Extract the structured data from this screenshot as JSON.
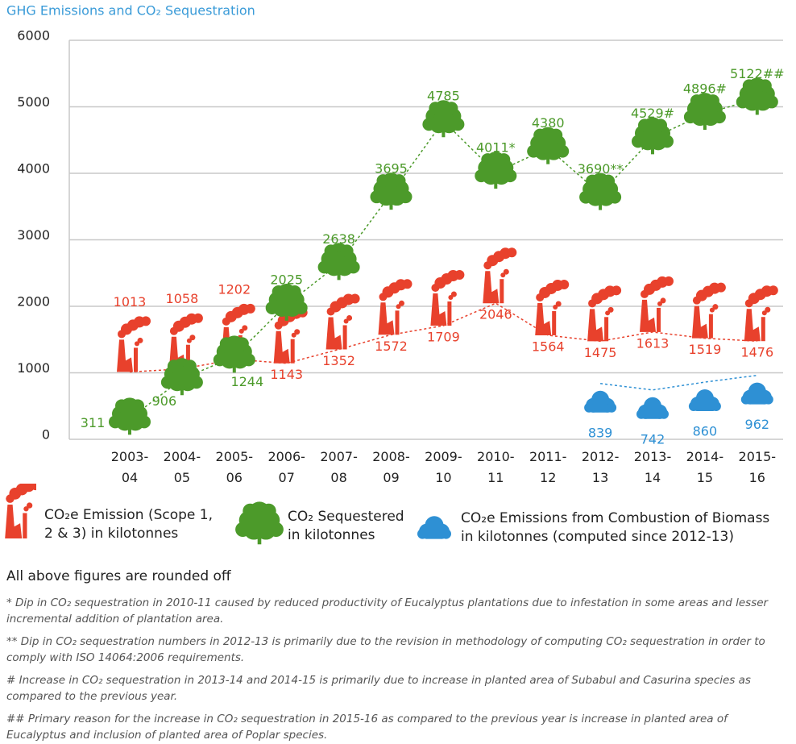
{
  "chart_data": {
    "type": "line",
    "title": "GHG Emissions and CO₂ Sequestration",
    "categories": [
      "2003-04",
      "2004-05",
      "2005-06",
      "2006-07",
      "2007-08",
      "2008-09",
      "2009-10",
      "2010-11",
      "2011-12",
      "2012-13",
      "2013-14",
      "2014-15",
      "2015-16"
    ],
    "series": [
      {
        "name": "CO₂e Emission (Scope 1, 2 & 3) in kilotonnes",
        "color": "#e8412c",
        "values": [
          1013,
          1058,
          1202,
          1143,
          1352,
          1572,
          1709,
          2046,
          1564,
          1475,
          1613,
          1519,
          1476
        ]
      },
      {
        "name": "CO₂ Sequestered in kilotonnes",
        "color": "#4c9a2a",
        "values": [
          311,
          906,
          1244,
          2025,
          2638,
          3695,
          4785,
          4011,
          4380,
          3690,
          4529,
          4896,
          5122
        ],
        "value_labels": [
          "311",
          "906",
          "1244",
          "2025",
          "2638",
          "3695",
          "4785",
          "4011*",
          "4380",
          "3690**",
          "4529#",
          "4896#",
          "5122##"
        ]
      },
      {
        "name": "CO₂e Emissions from Combustion of Biomass in kilotonnes (computed since 2012-13)",
        "color": "#2e90d4",
        "values": [
          null,
          null,
          null,
          null,
          null,
          null,
          null,
          null,
          null,
          839,
          742,
          860,
          962
        ]
      }
    ],
    "ylim": [
      0,
      6000
    ],
    "yticks": [
      0,
      1000,
      2000,
      3000,
      4000,
      5000,
      6000
    ],
    "grid": true
  },
  "note": "All above figures are rounded off",
  "footnotes": [
    "* Dip in CO₂ sequestration in 2010-11 caused by reduced productivity of Eucalyptus plantations due to infestation in some areas and lesser incremental addition of plantation area.",
    "** Dip in CO₂ sequestration numbers in 2012-13 is primarily due to the revision in methodology of computing CO₂ sequestration in order to comply with ISO 14064:2006 requirements.",
    "# Increase in CO₂ sequestration in 2013-14 and 2014-15 is primarily due to increase in planted area of Subabul and Casurina species as compared to the previous year.",
    "## Primary reason for the increase in CO₂ sequestration in 2015-16 as compared to the previous year is increase in planted area of Eucalyptus and inclusion of planted area of Poplar species."
  ]
}
